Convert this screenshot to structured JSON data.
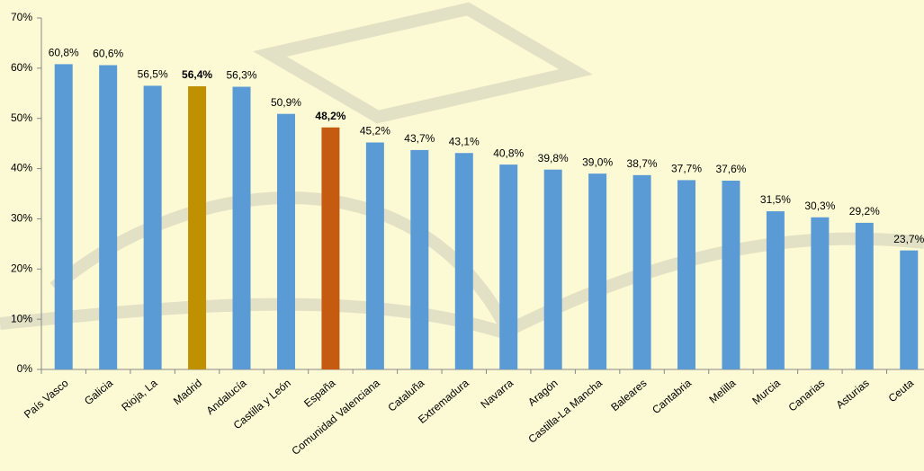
{
  "chart_data": {
    "type": "bar",
    "categories": [
      "País Vasco",
      "Galicia",
      "Rioja, La",
      "Madrid",
      "Andalucía",
      "Castilla y León",
      "España",
      "Comunidad Valenciana",
      "Cataluña",
      "Extremadura",
      "Navarra",
      "Aragón",
      "Castilla-La Mancha",
      "Baleares",
      "Cantabria",
      "Melilla",
      "Murcia",
      "Canarias",
      "Asturias",
      "Ceuta"
    ],
    "values": [
      60.8,
      60.6,
      56.5,
      56.4,
      56.3,
      50.9,
      48.2,
      45.2,
      43.7,
      43.1,
      40.8,
      39.8,
      39.0,
      38.7,
      37.7,
      37.6,
      31.5,
      30.3,
      29.2,
      23.7
    ],
    "value_labels": [
      "60,8%",
      "60,6%",
      "56,5%",
      "56,4%",
      "56,3%",
      "50,9%",
      "48,2%",
      "45,2%",
      "43,7%",
      "43,1%",
      "40,8%",
      "39,8%",
      "39,0%",
      "38,7%",
      "37,7%",
      "37,6%",
      "31,5%",
      "30,3%",
      "29,2%",
      "23,7%"
    ],
    "color": "#5b9bd5",
    "colors": [
      "#5b9bd5",
      "#5b9bd5",
      "#5b9bd5",
      "#bf9000",
      "#5b9bd5",
      "#5b9bd5",
      "#c55a11",
      "#5b9bd5",
      "#5b9bd5",
      "#5b9bd5",
      "#5b9bd5",
      "#5b9bd5",
      "#5b9bd5",
      "#5b9bd5",
      "#5b9bd5",
      "#5b9bd5",
      "#5b9bd5",
      "#5b9bd5",
      "#5b9bd5",
      "#5b9bd5"
    ],
    "ylim": [
      0,
      70
    ],
    "yticks": [
      {
        "value": 0,
        "label": "0%"
      },
      {
        "value": 10,
        "label": "10%"
      },
      {
        "value": 20,
        "label": "20%"
      },
      {
        "value": 30,
        "label": "30%"
      },
      {
        "value": 40,
        "label": "40%"
      },
      {
        "value": 50,
        "label": "50%"
      },
      {
        "value": 60,
        "label": "60%"
      },
      {
        "value": 70,
        "label": "70%"
      }
    ],
    "grid": false
  }
}
